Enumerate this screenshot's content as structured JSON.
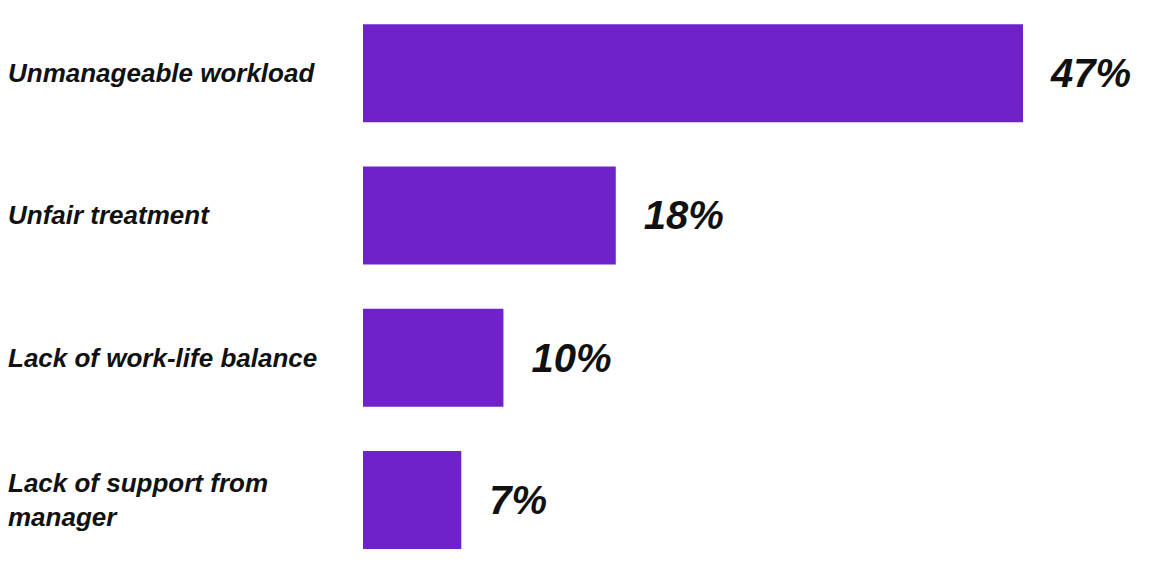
{
  "chart_data": {
    "type": "bar",
    "orientation": "horizontal",
    "categories": [
      "Unmanageable workload",
      "Unfair treatment",
      "Lack of work-life balance",
      "Lack of support from manager"
    ],
    "values": [
      47,
      18,
      10,
      7
    ],
    "value_labels": [
      "47%",
      "18%",
      "10%",
      "7%"
    ],
    "data_labels": true,
    "color": "#6f22c9",
    "xlim": [
      0,
      47
    ],
    "xticks": [
      0,
      47
    ],
    "tick_labels": "y",
    "grid": false
  }
}
